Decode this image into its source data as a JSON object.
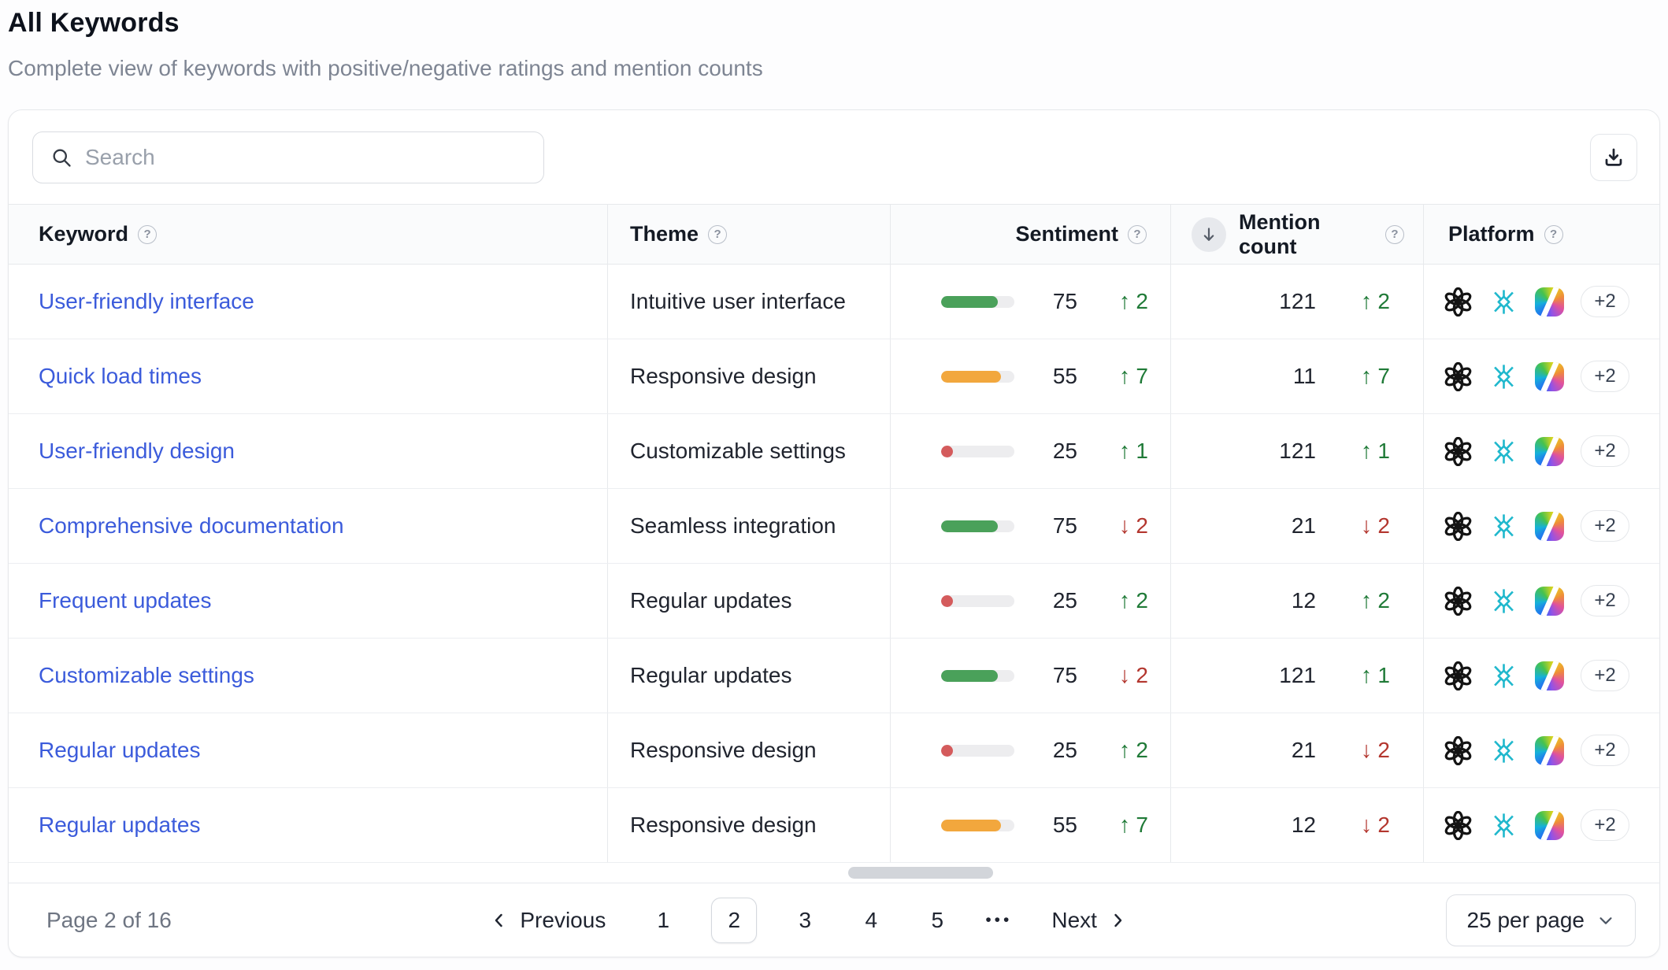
{
  "page": {
    "title": "All Keywords",
    "subtitle": "Complete view of keywords with positive/negative ratings and mention counts"
  },
  "toolbar": {
    "search_placeholder": "Search"
  },
  "table": {
    "columns": [
      {
        "label": "Keyword",
        "help": true
      },
      {
        "label": "Theme",
        "help": true
      },
      {
        "label": "Sentiment",
        "help": true,
        "align": "right"
      },
      {
        "label": "Mention count",
        "help": true,
        "align": "right",
        "sorted": "desc"
      },
      {
        "label": "Platform",
        "help": true
      }
    ],
    "rows": [
      {
        "keyword": "User-friendly interface",
        "theme": "Intuitive user interface",
        "sentiment": {
          "value": 75,
          "color": "green",
          "fill_pct": 77,
          "delta": 2,
          "direction": "up"
        },
        "mentions": {
          "count": 121,
          "delta": 2,
          "direction": "up"
        },
        "platforms": {
          "icons": [
            "chatgpt",
            "perplexity",
            "copilot"
          ],
          "more_label": "+2"
        }
      },
      {
        "keyword": "Quick load times",
        "theme": "Responsive design",
        "sentiment": {
          "value": 55,
          "color": "orange",
          "fill_pct": 82,
          "delta": 7,
          "direction": "up"
        },
        "mentions": {
          "count": 11,
          "delta": 7,
          "direction": "up"
        },
        "platforms": {
          "icons": [
            "chatgpt",
            "perplexity",
            "copilot"
          ],
          "more_label": "+2"
        }
      },
      {
        "keyword": "User-friendly design",
        "theme": "Customizable settings",
        "sentiment": {
          "value": 25,
          "color": "red",
          "fill_pct": 16,
          "delta": 1,
          "direction": "up"
        },
        "mentions": {
          "count": 121,
          "delta": 1,
          "direction": "up"
        },
        "platforms": {
          "icons": [
            "chatgpt",
            "perplexity",
            "copilot"
          ],
          "more_label": "+2"
        }
      },
      {
        "keyword": "Comprehensive documentation",
        "theme": "Seamless integration",
        "sentiment": {
          "value": 75,
          "color": "green",
          "fill_pct": 77,
          "delta": 2,
          "direction": "down"
        },
        "mentions": {
          "count": 21,
          "delta": 2,
          "direction": "down"
        },
        "platforms": {
          "icons": [
            "chatgpt",
            "perplexity",
            "copilot"
          ],
          "more_label": "+2"
        }
      },
      {
        "keyword": "Frequent updates",
        "theme": "Regular updates",
        "sentiment": {
          "value": 25,
          "color": "red",
          "fill_pct": 16,
          "delta": 2,
          "direction": "up"
        },
        "mentions": {
          "count": 12,
          "delta": 2,
          "direction": "up"
        },
        "platforms": {
          "icons": [
            "chatgpt",
            "perplexity",
            "copilot"
          ],
          "more_label": "+2"
        }
      },
      {
        "keyword": "Customizable settings",
        "theme": "Regular updates",
        "sentiment": {
          "value": 75,
          "color": "green",
          "fill_pct": 77,
          "delta": 2,
          "direction": "down"
        },
        "mentions": {
          "count": 121,
          "delta": 1,
          "direction": "up"
        },
        "platforms": {
          "icons": [
            "chatgpt",
            "perplexity",
            "copilot"
          ],
          "more_label": "+2"
        }
      },
      {
        "keyword": "Regular updates",
        "theme": "Responsive design",
        "sentiment": {
          "value": 25,
          "color": "red",
          "fill_pct": 16,
          "delta": 2,
          "direction": "up"
        },
        "mentions": {
          "count": 21,
          "delta": 2,
          "direction": "down"
        },
        "platforms": {
          "icons": [
            "chatgpt",
            "perplexity",
            "copilot"
          ],
          "more_label": "+2"
        }
      },
      {
        "keyword": "Regular updates",
        "theme": "Responsive design",
        "sentiment": {
          "value": 55,
          "color": "orange",
          "fill_pct": 82,
          "delta": 7,
          "direction": "up"
        },
        "mentions": {
          "count": 12,
          "delta": 2,
          "direction": "down"
        },
        "platforms": {
          "icons": [
            "chatgpt",
            "perplexity",
            "copilot"
          ],
          "more_label": "+2"
        }
      }
    ]
  },
  "footer": {
    "page_status": "Page 2 of 16",
    "previous_label": "Previous",
    "next_label": "Next",
    "pages": [
      "1",
      "2",
      "3",
      "4",
      "5"
    ],
    "active_page": "2",
    "ellipsis": "•••",
    "page_size_label": "25 per page"
  },
  "colors": {
    "link": "#3b5bdb",
    "positive": "#1f7a37",
    "negative": "#b3362e",
    "bar_green": "#4aa15a",
    "bar_orange": "#f2a73d",
    "bar_red": "#d45b5c",
    "bar_track": "#ededef"
  }
}
